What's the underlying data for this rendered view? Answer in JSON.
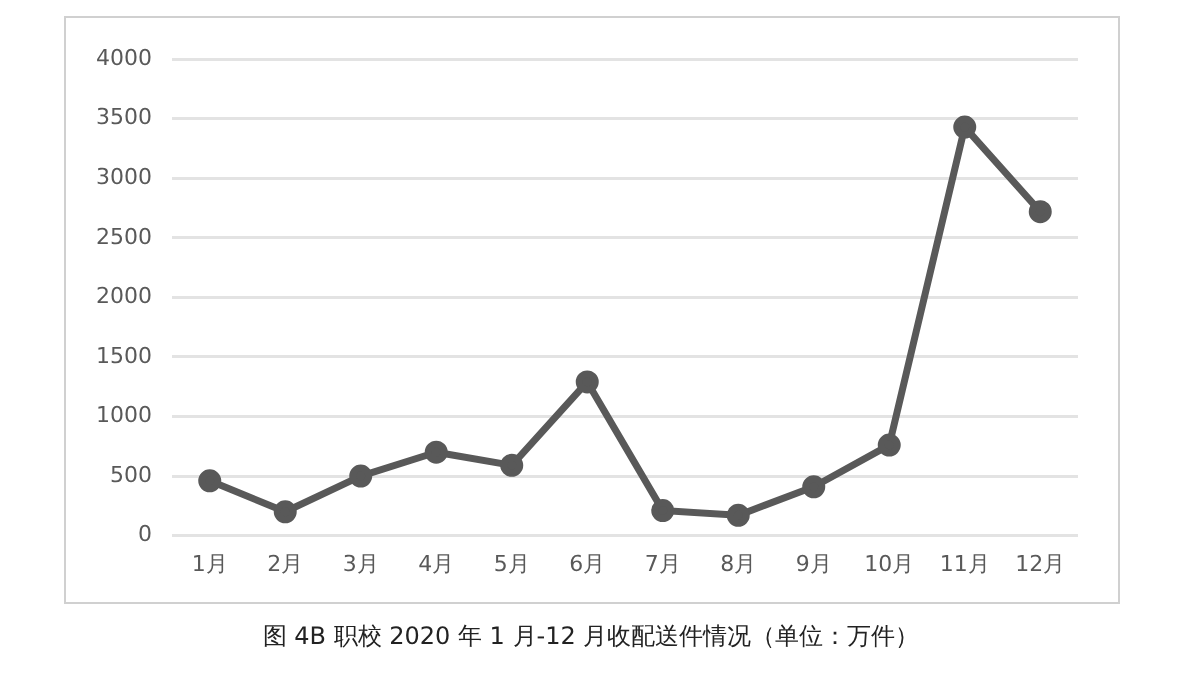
{
  "chart_data": {
    "type": "line",
    "title": "图 4B 职校 2020 年 1 月-12 月收配送件情况（单位：万件）",
    "categories": [
      "1月",
      "2月",
      "3月",
      "4月",
      "5月",
      "6月",
      "7月",
      "8月",
      "9月",
      "10月",
      "11月",
      "12月"
    ],
    "series": [
      {
        "color": "#595959",
        "values": [
          460,
          200,
          500,
          700,
          590,
          1290,
          210,
          170,
          410,
          760,
          3430,
          2720
        ]
      }
    ],
    "ylim": [
      0,
      4000
    ],
    "yticks": [
      0,
      500,
      1000,
      1500,
      2000,
      2500,
      3000,
      3500,
      4000
    ],
    "grid": "y",
    "legend": false,
    "marker": "circle",
    "line_style": "solid"
  }
}
